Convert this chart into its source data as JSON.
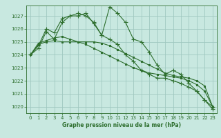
{
  "bg_color": "#c8e8e0",
  "grid_color": "#a0c8c0",
  "line_color": "#2d6e2d",
  "xlabel": "Graphe pression niveau de la mer (hPa)",
  "xlabel_color": "#2d6e2d",
  "tick_color": "#2d6e2d",
  "ylim": [
    1019.5,
    1027.8
  ],
  "yticks": [
    1020,
    1021,
    1022,
    1023,
    1024,
    1025,
    1026,
    1027
  ],
  "xlim": [
    -0.5,
    23.5
  ],
  "xticks": [
    0,
    1,
    2,
    3,
    4,
    5,
    6,
    7,
    8,
    9,
    10,
    11,
    12,
    13,
    14,
    15,
    16,
    17,
    18,
    19,
    20,
    21,
    22,
    23
  ],
  "series": [
    {
      "x": [
        0,
        1,
        2,
        3,
        4,
        5,
        6,
        7,
        8,
        9,
        10,
        11,
        12,
        13,
        14,
        15,
        16,
        17,
        18,
        19,
        20,
        21,
        22,
        23
      ],
      "y": [
        1024.0,
        1024.8,
        1025.0,
        1025.1,
        1025.0,
        1025.0,
        1025.0,
        1025.0,
        1025.0,
        1024.9,
        1024.7,
        1024.4,
        1024.1,
        1023.8,
        1023.5,
        1023.2,
        1022.9,
        1022.6,
        1022.4,
        1022.3,
        1022.2,
        1022.0,
        1021.6,
        1020.0
      ],
      "marker": "s",
      "markersize": 2.0,
      "lw": 0.8
    },
    {
      "x": [
        0,
        1,
        2,
        3,
        4,
        5,
        6,
        7,
        8,
        9,
        10,
        11,
        12,
        13,
        14,
        15,
        16,
        17,
        18,
        19,
        20,
        21,
        22,
        23
      ],
      "y": [
        1024.0,
        1024.9,
        1025.1,
        1025.3,
        1025.4,
        1025.2,
        1025.0,
        1024.8,
        1024.5,
        1024.2,
        1023.9,
        1023.6,
        1023.3,
        1023.0,
        1022.8,
        1022.6,
        1022.5,
        1022.4,
        1022.3,
        1022.2,
        1022.0,
        1021.7,
        1021.2,
        1020.0
      ],
      "marker": "s",
      "markersize": 2.0,
      "lw": 0.8
    },
    {
      "x": [
        0,
        1,
        2,
        3,
        4,
        5,
        6,
        7,
        8,
        9,
        10,
        11,
        12,
        13,
        14,
        15,
        16,
        17,
        18,
        19,
        20,
        21,
        22,
        23
      ],
      "y": [
        1024.0,
        1024.7,
        1026.0,
        1025.7,
        1026.8,
        1027.0,
        1027.0,
        1027.2,
        1026.4,
        1025.5,
        1025.2,
        1024.8,
        1024.0,
        1023.5,
        1022.8,
        1022.5,
        1022.2,
        1022.2,
        1022.0,
        1021.8,
        1021.5,
        1021.2,
        1020.5,
        1020.0
      ],
      "marker": "+",
      "markersize": 4.5,
      "lw": 0.8
    },
    {
      "x": [
        0,
        1,
        2,
        3,
        4,
        5,
        6,
        7,
        8,
        9,
        10,
        11,
        12,
        13,
        14,
        15,
        16,
        17,
        18,
        19,
        20,
        21,
        22,
        23
      ],
      "y": [
        1024.0,
        1024.5,
        1025.8,
        1025.2,
        1026.5,
        1027.0,
        1027.2,
        1027.0,
        1026.5,
        1025.5,
        1027.7,
        1027.2,
        1026.5,
        1025.2,
        1025.0,
        1024.2,
        1023.2,
        1022.5,
        1022.8,
        1022.5,
        1021.8,
        1021.2,
        1020.5,
        1019.8
      ],
      "marker": "+",
      "markersize": 4.5,
      "lw": 0.8
    }
  ]
}
